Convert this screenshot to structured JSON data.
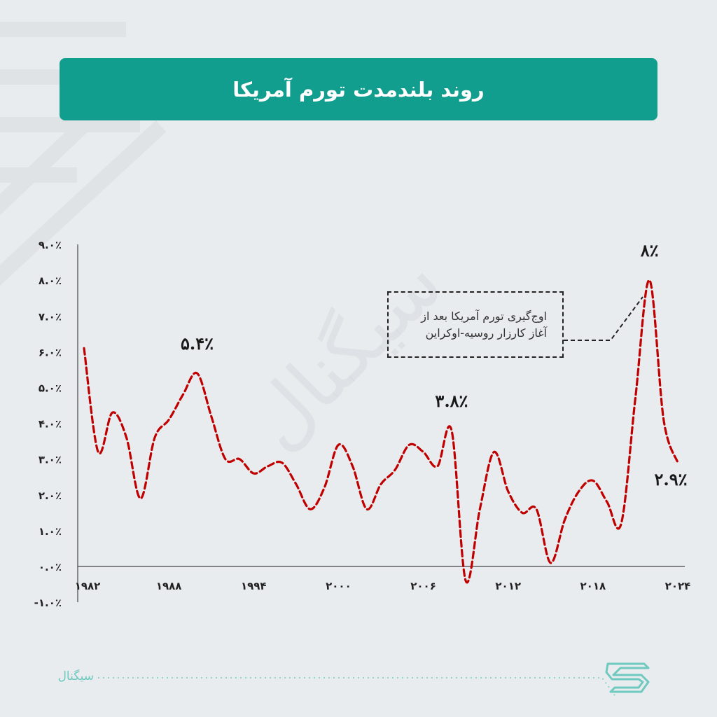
{
  "title": "روند بلندمدت تورم آمریکا",
  "watermark": "سیگنال",
  "annotation": {
    "line1": "اوج‌گیری تورم آمریکا بعد از",
    "line2": "آغاز کارزار روسیه-اوکراین"
  },
  "footer": {
    "brand": "سیگنال"
  },
  "colors": {
    "banner": "#129e8e",
    "line": "#c00000",
    "background": "#e9ecee"
  },
  "chart_data": {
    "type": "line",
    "title": "روند بلندمدت تورم آمریکا",
    "xlabel": "",
    "ylabel": "",
    "ylim": [
      -1,
      9
    ],
    "xlim": [
      1982,
      2024
    ],
    "grid": false,
    "line_style": "dashed",
    "y_ticks": [
      -1,
      0,
      1,
      2,
      3,
      4,
      5,
      6,
      7,
      8,
      9
    ],
    "y_tick_labels": [
      "-۱.۰٪",
      "۰.۰٪",
      "۱.۰٪",
      "۲.۰٪",
      "۳.۰٪",
      "۴.۰٪",
      "۵.۰٪",
      "۶.۰٪",
      "۷.۰٪",
      "۸.۰٪",
      "۹.۰٪"
    ],
    "x_ticks": [
      1982,
      1988,
      1994,
      2000,
      2006,
      2012,
      2018,
      2024
    ],
    "x_tick_labels": [
      "۱۹۸۲",
      "۱۹۸۸",
      "۱۹۹۴",
      "۲۰۰۰",
      "۲۰۰۶",
      "۲۰۱۲",
      "۲۰۱۸",
      "۲۰۲۴"
    ],
    "series": [
      {
        "x": [
          1982,
          1983,
          1984,
          1985,
          1986,
          1987,
          1988,
          1989,
          1990,
          1991,
          1992,
          1993,
          1994,
          1995,
          1996,
          1997,
          1998,
          1999,
          2000,
          2001,
          2002,
          2003,
          2004,
          2005,
          2006,
          2007,
          2008,
          2009,
          2010,
          2011,
          2012,
          2013,
          2014,
          2015,
          2016,
          2017,
          2018,
          2019,
          2020,
          2021,
          2022,
          2023,
          2024
        ],
        "y": [
          6.1,
          3.2,
          4.3,
          3.6,
          1.9,
          3.6,
          4.1,
          4.8,
          5.4,
          4.2,
          3.0,
          3.0,
          2.6,
          2.8,
          2.9,
          2.3,
          1.6,
          2.2,
          3.4,
          2.8,
          1.6,
          2.3,
          2.7,
          3.4,
          3.2,
          2.8,
          3.8,
          -0.4,
          1.6,
          3.2,
          2.1,
          1.5,
          1.6,
          0.1,
          1.3,
          2.1,
          2.4,
          1.8,
          1.2,
          4.7,
          8.0,
          4.1,
          2.9
        ]
      }
    ],
    "annotations": [
      {
        "x": 1990,
        "y": 5.4,
        "text": "۵.۴٪"
      },
      {
        "x": 2008,
        "y": 3.8,
        "text": "۳.۸٪"
      },
      {
        "x": 2022,
        "y": 8.0,
        "text": "۸٪"
      },
      {
        "x": 2024,
        "y": 2.9,
        "text": "۲.۹٪"
      }
    ]
  }
}
